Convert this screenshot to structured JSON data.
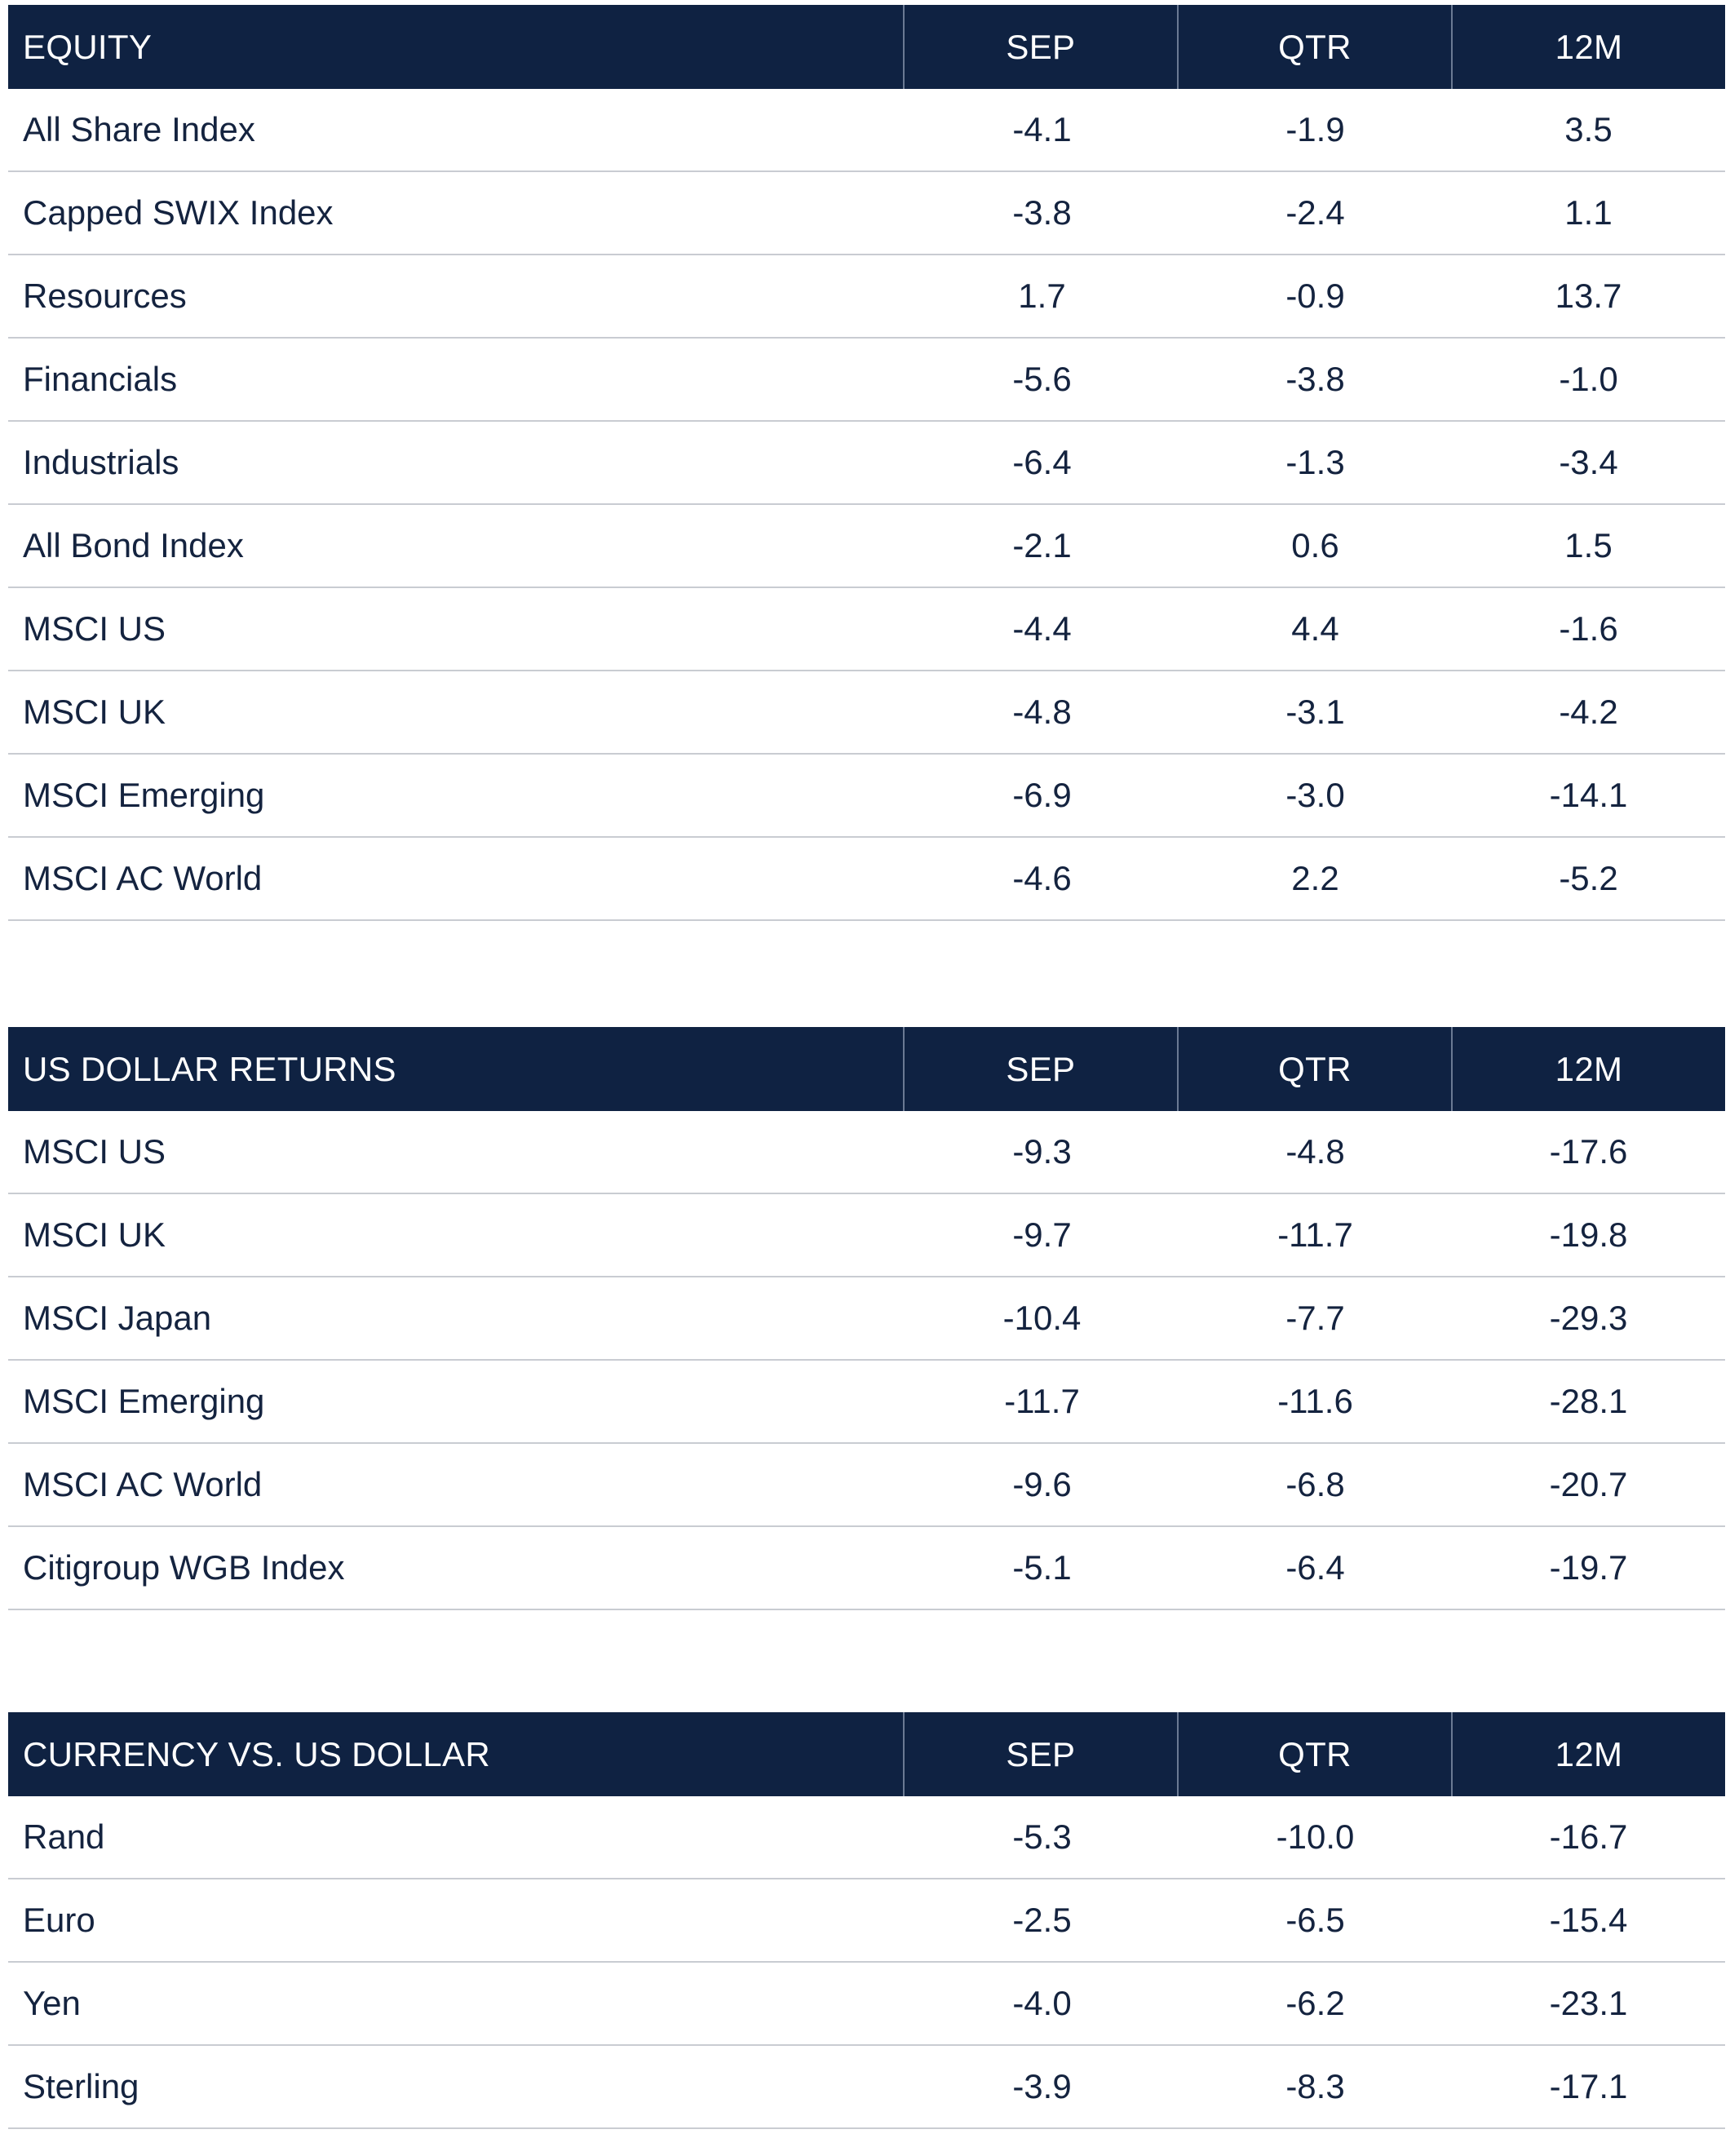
{
  "tables": [
    {
      "header": {
        "title": "EQUITY",
        "col1": "SEP",
        "col2": "QTR",
        "col3": "12M"
      },
      "rows": [
        {
          "label": "All Share Index",
          "sep": "-4.1",
          "qtr": "-1.9",
          "m12": "3.5"
        },
        {
          "label": "Capped SWIX Index",
          "sep": "-3.8",
          "qtr": "-2.4",
          "m12": "1.1"
        },
        {
          "label": "Resources",
          "sep": "1.7",
          "qtr": "-0.9",
          "m12": "13.7"
        },
        {
          "label": "Financials",
          "sep": "-5.6",
          "qtr": "-3.8",
          "m12": "-1.0"
        },
        {
          "label": "Industrials",
          "sep": "-6.4",
          "qtr": "-1.3",
          "m12": "-3.4"
        },
        {
          "label": "All Bond Index",
          "sep": "-2.1",
          "qtr": "0.6",
          "m12": "1.5"
        },
        {
          "label": "MSCI US",
          "sep": "-4.4",
          "qtr": "4.4",
          "m12": "-1.6"
        },
        {
          "label": "MSCI UK",
          "sep": "-4.8",
          "qtr": "-3.1",
          "m12": "-4.2"
        },
        {
          "label": "MSCI Emerging",
          "sep": "-6.9",
          "qtr": "-3.0",
          "m12": "-14.1"
        },
        {
          "label": "MSCI AC World",
          "sep": "-4.6",
          "qtr": "2.2",
          "m12": "-5.2"
        }
      ]
    },
    {
      "header": {
        "title": "US DOLLAR RETURNS",
        "col1": "SEP",
        "col2": "QTR",
        "col3": "12M"
      },
      "rows": [
        {
          "label": "MSCI US",
          "sep": "-9.3",
          "qtr": "-4.8",
          "m12": "-17.6"
        },
        {
          "label": "MSCI UK",
          "sep": "-9.7",
          "qtr": "-11.7",
          "m12": "-19.8"
        },
        {
          "label": "MSCI Japan",
          "sep": "-10.4",
          "qtr": "-7.7",
          "m12": "-29.3"
        },
        {
          "label": "MSCI Emerging",
          "sep": "-11.7",
          "qtr": "-11.6",
          "m12": "-28.1"
        },
        {
          "label": "MSCI AC World",
          "sep": "-9.6",
          "qtr": "-6.8",
          "m12": "-20.7"
        },
        {
          "label": "Citigroup WGB Index",
          "sep": "-5.1",
          "qtr": "-6.4",
          "m12": "-19.7"
        }
      ]
    },
    {
      "header": {
        "title": "CURRENCY VS. US DOLLAR",
        "col1": "SEP",
        "col2": "QTR",
        "col3": "12M"
      },
      "rows": [
        {
          "label": "Rand",
          "sep": "-5.3",
          "qtr": "-10.0",
          "m12": "-16.7"
        },
        {
          "label": "Euro",
          "sep": "-2.5",
          "qtr": "-6.5",
          "m12": "-15.4"
        },
        {
          "label": "Yen",
          "sep": "-4.0",
          "qtr": "-6.2",
          "m12": "-23.1"
        },
        {
          "label": "Sterling",
          "sep": "-3.9",
          "qtr": "-8.3",
          "m12": "-17.1"
        }
      ]
    }
  ]
}
